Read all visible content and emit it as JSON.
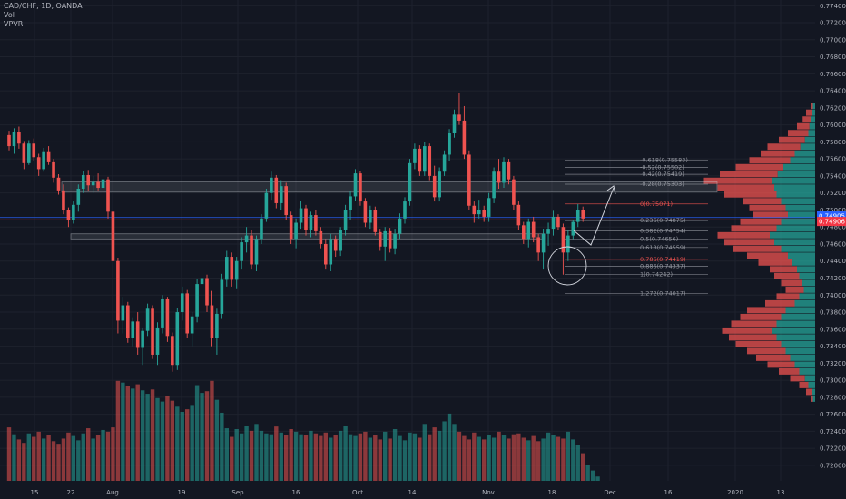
{
  "header": {
    "symbol_line": "CAD/CHF, 1D, OANDA",
    "indicator_vol": "Vol",
    "indicator_vpvr": "VPVR"
  },
  "colors": {
    "background": "#131722",
    "up": "#26a69a",
    "down": "#ef5350",
    "grid": "#1e222d",
    "axis_text": "#b2b5be",
    "fib_line": "#787b86",
    "zone_fill": "#d1d4dc",
    "price_badge_blue": "#2962ff",
    "price_badge_red": "#f23645"
  },
  "price_badges": [
    {
      "text": "0.74905",
      "color": "#2962ff"
    },
    {
      "text": "0.74906",
      "color": "#f23645"
    }
  ],
  "chart_data": {
    "type": "candlestick",
    "title": "CAD/CHF, 1D, OANDA",
    "y_axis": {
      "ticks": [
        "0.77400",
        "0.77200",
        "0.77000",
        "0.76800",
        "0.76600",
        "0.76400",
        "0.76200",
        "0.76000",
        "0.75800",
        "0.75600",
        "0.75400",
        "0.75200",
        "0.75000",
        "0.74800",
        "0.74600",
        "0.74400",
        "0.74200",
        "0.74000",
        "0.73800",
        "0.73600",
        "0.73400",
        "0.73200",
        "0.73000",
        "0.72800",
        "0.72600",
        "0.72400",
        "0.72200",
        "0.72000"
      ],
      "range": [
        0.7193,
        0.7744
      ]
    },
    "x_axis": {
      "labels": [
        "15",
        "22",
        "Aug",
        "19",
        "Sep",
        "16",
        "Oct",
        "14",
        "Nov",
        "18",
        "Dec",
        "16",
        "2020",
        "13"
      ]
    },
    "ohlc": [
      [
        0.7588,
        0.7593,
        0.757,
        0.7575
      ],
      [
        0.7575,
        0.7596,
        0.7566,
        0.7592
      ],
      [
        0.7592,
        0.7598,
        0.7572,
        0.7578
      ],
      [
        0.7578,
        0.7581,
        0.7548,
        0.7555
      ],
      [
        0.7555,
        0.7582,
        0.7553,
        0.7578
      ],
      [
        0.7578,
        0.7584,
        0.7558,
        0.7562
      ],
      [
        0.7562,
        0.7566,
        0.754,
        0.7548
      ],
      [
        0.7548,
        0.7573,
        0.7545,
        0.7569
      ],
      [
        0.7569,
        0.7575,
        0.7553,
        0.7556
      ],
      [
        0.7556,
        0.756,
        0.7532,
        0.7538
      ],
      [
        0.7538,
        0.7542,
        0.7518,
        0.7523
      ],
      [
        0.7523,
        0.753,
        0.7495,
        0.75
      ],
      [
        0.75,
        0.7503,
        0.748,
        0.7488
      ],
      [
        0.7488,
        0.751,
        0.7484,
        0.7506
      ],
      [
        0.7506,
        0.753,
        0.7498,
        0.7525
      ],
      [
        0.7525,
        0.7546,
        0.752,
        0.7541
      ],
      [
        0.7541,
        0.7547,
        0.7522,
        0.7529
      ],
      [
        0.7529,
        0.754,
        0.752,
        0.7533
      ],
      [
        0.7533,
        0.7543,
        0.7523,
        0.7526
      ],
      [
        0.7526,
        0.7541,
        0.7518,
        0.7536
      ],
      [
        0.7536,
        0.7539,
        0.749,
        0.7498
      ],
      [
        0.7498,
        0.7502,
        0.743,
        0.744
      ],
      [
        0.744,
        0.7444,
        0.7355,
        0.737
      ],
      [
        0.737,
        0.7398,
        0.7355,
        0.7388
      ],
      [
        0.7388,
        0.7392,
        0.7344,
        0.735
      ],
      [
        0.735,
        0.7374,
        0.734,
        0.7369
      ],
      [
        0.7369,
        0.738,
        0.733,
        0.7338
      ],
      [
        0.7338,
        0.7362,
        0.7318,
        0.7358
      ],
      [
        0.7358,
        0.739,
        0.7352,
        0.7384
      ],
      [
        0.7384,
        0.7388,
        0.7325,
        0.733
      ],
      [
        0.733,
        0.7368,
        0.7318,
        0.7362
      ],
      [
        0.7362,
        0.74,
        0.7355,
        0.7395
      ],
      [
        0.7395,
        0.7398,
        0.7345,
        0.7352
      ],
      [
        0.7352,
        0.7356,
        0.731,
        0.7318
      ],
      [
        0.7318,
        0.7385,
        0.7312,
        0.738
      ],
      [
        0.738,
        0.741,
        0.737,
        0.7402
      ],
      [
        0.7402,
        0.7406,
        0.735,
        0.7355
      ],
      [
        0.7355,
        0.738,
        0.734,
        0.7375
      ],
      [
        0.7375,
        0.7419,
        0.7368,
        0.7413
      ],
      [
        0.7413,
        0.7428,
        0.74,
        0.742
      ],
      [
        0.742,
        0.7424,
        0.738,
        0.7388
      ],
      [
        0.7388,
        0.7405,
        0.734,
        0.735
      ],
      [
        0.735,
        0.7384,
        0.733,
        0.7378
      ],
      [
        0.7378,
        0.7425,
        0.7372,
        0.7418
      ],
      [
        0.7418,
        0.7452,
        0.741,
        0.7445
      ],
      [
        0.7445,
        0.745,
        0.741,
        0.7418
      ],
      [
        0.7418,
        0.7445,
        0.7408,
        0.744
      ],
      [
        0.744,
        0.7468,
        0.743,
        0.7462
      ],
      [
        0.7462,
        0.748,
        0.745,
        0.747
      ],
      [
        0.747,
        0.7476,
        0.743,
        0.7436
      ],
      [
        0.7436,
        0.747,
        0.7428,
        0.7466
      ],
      [
        0.7466,
        0.7495,
        0.746,
        0.749
      ],
      [
        0.749,
        0.7525,
        0.7486,
        0.752
      ],
      [
        0.752,
        0.7545,
        0.7512,
        0.7538
      ],
      [
        0.7538,
        0.7541,
        0.7502,
        0.7508
      ],
      [
        0.7508,
        0.7535,
        0.75,
        0.7528
      ],
      [
        0.7528,
        0.7532,
        0.7488,
        0.7494
      ],
      [
        0.7494,
        0.7498,
        0.746,
        0.7466
      ],
      [
        0.7466,
        0.749,
        0.7455,
        0.7485
      ],
      [
        0.7485,
        0.751,
        0.7478,
        0.7502
      ],
      [
        0.7502,
        0.7506,
        0.747,
        0.7476
      ],
      [
        0.7476,
        0.7498,
        0.7468,
        0.7494
      ],
      [
        0.7494,
        0.75,
        0.747,
        0.7475
      ],
      [
        0.7475,
        0.748,
        0.7455,
        0.746
      ],
      [
        0.746,
        0.7466,
        0.743,
        0.7436
      ],
      [
        0.7436,
        0.7472,
        0.7428,
        0.7466
      ],
      [
        0.7466,
        0.747,
        0.7445,
        0.7452
      ],
      [
        0.7452,
        0.748,
        0.7446,
        0.7476
      ],
      [
        0.7476,
        0.7506,
        0.747,
        0.75
      ],
      [
        0.75,
        0.7522,
        0.7488,
        0.7516
      ],
      [
        0.7516,
        0.7548,
        0.751,
        0.7543
      ],
      [
        0.7543,
        0.7546,
        0.7505,
        0.751
      ],
      [
        0.751,
        0.7514,
        0.748,
        0.7485
      ],
      [
        0.7485,
        0.7505,
        0.7478,
        0.75
      ],
      [
        0.75,
        0.7504,
        0.747,
        0.7474
      ],
      [
        0.7474,
        0.7478,
        0.7452,
        0.7457
      ],
      [
        0.7457,
        0.748,
        0.744,
        0.7475
      ],
      [
        0.7475,
        0.7479,
        0.745,
        0.7455
      ],
      [
        0.7455,
        0.7478,
        0.7448,
        0.7472
      ],
      [
        0.7472,
        0.7496,
        0.7466,
        0.749
      ],
      [
        0.749,
        0.7515,
        0.7484,
        0.751
      ],
      [
        0.751,
        0.756,
        0.7505,
        0.7555
      ],
      [
        0.7555,
        0.7578,
        0.7548,
        0.7572
      ],
      [
        0.7572,
        0.7576,
        0.754,
        0.7545
      ],
      [
        0.7545,
        0.758,
        0.754,
        0.7575
      ],
      [
        0.7575,
        0.7578,
        0.7535,
        0.754
      ],
      [
        0.754,
        0.7552,
        0.751,
        0.7515
      ],
      [
        0.7515,
        0.755,
        0.751,
        0.7545
      ],
      [
        0.7545,
        0.757,
        0.754,
        0.7565
      ],
      [
        0.7565,
        0.7595,
        0.7558,
        0.759
      ],
      [
        0.759,
        0.7618,
        0.7585,
        0.7612
      ],
      [
        0.7612,
        0.7638,
        0.76,
        0.7605
      ],
      [
        0.7605,
        0.7622,
        0.756,
        0.7565
      ],
      [
        0.7565,
        0.757,
        0.75,
        0.7505
      ],
      [
        0.7505,
        0.751,
        0.7485,
        0.7495
      ],
      [
        0.7495,
        0.7512,
        0.749,
        0.75
      ],
      [
        0.75,
        0.7505,
        0.7486,
        0.7492
      ],
      [
        0.7492,
        0.752,
        0.7486,
        0.7514
      ],
      [
        0.7514,
        0.755,
        0.7508,
        0.7545
      ],
      [
        0.7545,
        0.756,
        0.7525,
        0.7532
      ],
      [
        0.7532,
        0.7562,
        0.7526,
        0.7556
      ],
      [
        0.7556,
        0.756,
        0.753,
        0.7536
      ],
      [
        0.7536,
        0.754,
        0.75,
        0.7506
      ],
      [
        0.7506,
        0.751,
        0.7476,
        0.7482
      ],
      [
        0.7482,
        0.7486,
        0.746,
        0.7466
      ],
      [
        0.7466,
        0.749,
        0.7456,
        0.7486
      ],
      [
        0.7486,
        0.7492,
        0.7462,
        0.7468
      ],
      [
        0.7468,
        0.7472,
        0.744,
        0.745
      ],
      [
        0.745,
        0.7478,
        0.743,
        0.7472
      ],
      [
        0.7472,
        0.7485,
        0.7458,
        0.7478
      ],
      [
        0.7478,
        0.7499,
        0.747,
        0.7492
      ],
      [
        0.7492,
        0.7495,
        0.7476,
        0.748
      ],
      [
        0.748,
        0.7484,
        0.7424,
        0.745
      ],
      [
        0.745,
        0.7476,
        0.744,
        0.747
      ],
      [
        0.747,
        0.7488,
        0.7466,
        0.7486
      ],
      [
        0.7486,
        0.7507,
        0.748,
        0.75
      ],
      [
        0.75,
        0.7504,
        0.7486,
        0.749
      ]
    ],
    "volume": [
      62,
      54,
      48,
      44,
      55,
      51,
      57,
      49,
      53,
      46,
      43,
      49,
      56,
      52,
      47,
      55,
      61,
      49,
      53,
      59,
      57,
      62,
      116,
      114,
      110,
      107,
      112,
      105,
      101,
      106,
      96,
      92,
      98,
      93,
      86,
      80,
      83,
      88,
      111,
      102,
      104,
      116,
      94,
      79,
      61,
      51,
      60,
      55,
      64,
      58,
      66,
      58,
      55,
      54,
      63,
      56,
      53,
      60,
      57,
      54,
      53,
      58,
      55,
      52,
      56,
      50,
      53,
      58,
      64,
      54,
      52,
      55,
      57,
      50,
      53,
      48,
      57,
      49,
      60,
      52,
      47,
      56,
      55,
      50,
      66,
      54,
      62,
      58,
      69,
      78,
      66,
      57,
      52,
      48,
      56,
      51,
      48,
      53,
      50,
      57,
      53,
      49,
      54,
      55,
      50,
      47,
      52,
      46,
      49,
      56,
      53,
      51,
      49,
      57,
      48,
      42,
      32,
      18,
      12,
      5
    ],
    "fibonacci": [
      {
        "label": "-0.618(0.75583)",
        "value": 0.75583
      },
      {
        "label": "-0.52(0.75502)",
        "value": 0.75502
      },
      {
        "label": "-0.42(0.75419)",
        "value": 0.75419
      },
      {
        "label": "-0.28(0.75303)",
        "value": 0.75303
      },
      {
        "label": "0(0.75071)",
        "value": 0.75071
      },
      {
        "label": "0.236(0.74875)",
        "value": 0.74875
      },
      {
        "label": "0.382(0.74754)",
        "value": 0.74754
      },
      {
        "label": "0.5(0.74656)",
        "value": 0.74656
      },
      {
        "label": "0.618(0.74559)",
        "value": 0.74559
      },
      {
        "label": "0.786(0.74419)",
        "value": 0.74419
      },
      {
        "label": "0.886(0.74337)",
        "value": 0.74337
      },
      {
        "label": "1(0.74242)",
        "value": 0.74242
      },
      {
        "label": "1.272(0.74017)",
        "value": 0.74017
      }
    ],
    "zones": [
      {
        "from": 0.7521,
        "to": 0.7533
      },
      {
        "from": 0.7466,
        "to": 0.7472
      }
    ],
    "vpvr": [
      [
        0.7622,
        4,
        2
      ],
      [
        0.7614,
        8,
        3
      ],
      [
        0.7606,
        11,
        4
      ],
      [
        0.7598,
        16,
        5
      ],
      [
        0.759,
        24,
        6
      ],
      [
        0.7582,
        32,
        9
      ],
      [
        0.7574,
        42,
        13
      ],
      [
        0.7566,
        48,
        18
      ],
      [
        0.7558,
        58,
        22
      ],
      [
        0.755,
        70,
        28
      ],
      [
        0.7542,
        84,
        33
      ],
      [
        0.7534,
        98,
        38
      ],
      [
        0.7526,
        86,
        36
      ],
      [
        0.7518,
        80,
        34
      ],
      [
        0.751,
        64,
        30
      ],
      [
        0.7502,
        58,
        26
      ],
      [
        0.7494,
        55,
        24
      ],
      [
        0.7486,
        66,
        30
      ],
      [
        0.7478,
        74,
        34
      ],
      [
        0.747,
        86,
        40
      ],
      [
        0.7462,
        80,
        36
      ],
      [
        0.7454,
        72,
        30
      ],
      [
        0.7446,
        60,
        24
      ],
      [
        0.7438,
        50,
        20
      ],
      [
        0.743,
        40,
        16
      ],
      [
        0.7422,
        36,
        14
      ],
      [
        0.7414,
        30,
        12
      ],
      [
        0.7406,
        26,
        10
      ],
      [
        0.7398,
        34,
        14
      ],
      [
        0.739,
        44,
        18
      ],
      [
        0.7382,
        60,
        26
      ],
      [
        0.7374,
        66,
        30
      ],
      [
        0.7366,
        74,
        34
      ],
      [
        0.7358,
        82,
        38
      ],
      [
        0.735,
        76,
        34
      ],
      [
        0.7342,
        70,
        30
      ],
      [
        0.7334,
        60,
        26
      ],
      [
        0.7326,
        52,
        22
      ],
      [
        0.7318,
        42,
        18
      ],
      [
        0.731,
        32,
        14
      ],
      [
        0.7302,
        22,
        9
      ],
      [
        0.7294,
        14,
        6
      ],
      [
        0.7286,
        8,
        3
      ],
      [
        0.7278,
        4,
        2
      ]
    ],
    "grid": true
  }
}
